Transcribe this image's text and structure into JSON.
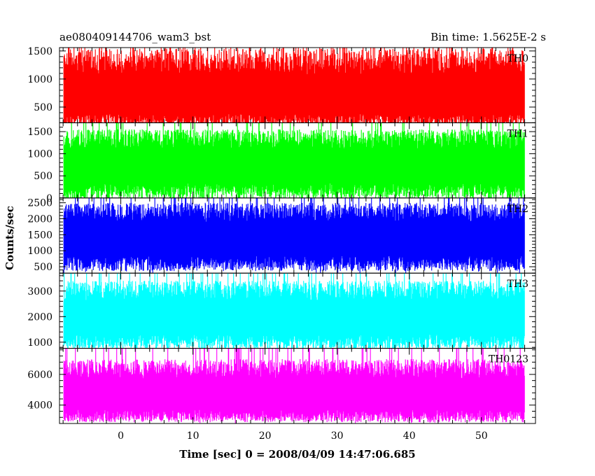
{
  "header": {
    "left_title": "ae080409144706_wam3_bst",
    "right_title": "Bin time: 1.5625E-2 s"
  },
  "axes": {
    "xlabel": "Time [sec] 0 = 2008/04/09 14:47:06.685",
    "ylabel": "Counts/sec"
  },
  "chart_data": {
    "type": "line",
    "title": "ae080409144706_wam3_bst",
    "subtitle": "Bin time: 1.5625E-2 s",
    "xlabel": "Time [sec] 0 = 2008/04/09 14:47:06.685",
    "ylabel": "Counts/sec",
    "xlim": [
      -8.5,
      57.5
    ],
    "data_x_range": [
      -7.9,
      56.0
    ],
    "x_ticks": [
      0,
      10,
      20,
      30,
      40,
      50
    ],
    "panels": [
      {
        "name": "TH0",
        "color": "#ff0000",
        "ylim": [
          220,
          1560
        ],
        "y_ticks": [
          500,
          1000,
          1500
        ],
        "low": 250,
        "mid": 680,
        "high": 1540,
        "spike_top": 1560,
        "dip_bottom": 170,
        "seed": 11
      },
      {
        "name": "TH1",
        "color": "#00ff00",
        "ylim": [
          0,
          1700
        ],
        "y_ticks": [
          0,
          500,
          1000,
          1500
        ],
        "low": 150,
        "mid": 750,
        "high": 1550,
        "spike_top": 1700,
        "dip_bottom": 60,
        "seed": 23
      },
      {
        "name": "TH2",
        "color": "#0000ff",
        "ylim": [
          300,
          2650
        ],
        "y_ticks": [
          500,
          1000,
          1500,
          2000,
          2500
        ],
        "low": 600,
        "mid": 1400,
        "high": 2500,
        "spike_top": 2650,
        "dip_bottom": 300,
        "seed": 37
      },
      {
        "name": "TH3",
        "color": "#00ffff",
        "ylim": [
          760,
          3700
        ],
        "y_ticks": [
          1000,
          2000,
          3000
        ],
        "low": 1000,
        "mid": 2000,
        "high": 3400,
        "spike_top": 3700,
        "dip_bottom": 760,
        "seed": 41
      },
      {
        "name": "TH0123",
        "color": "#ff00ff",
        "ylim": [
          2800,
          7700
        ],
        "y_ticks": [
          4000,
          6000
        ],
        "low": 3300,
        "mid": 4700,
        "high": 7000,
        "spike_top": 7700,
        "dip_bottom": 2800,
        "seed": 53
      }
    ],
    "grid": false,
    "legend": "none"
  }
}
